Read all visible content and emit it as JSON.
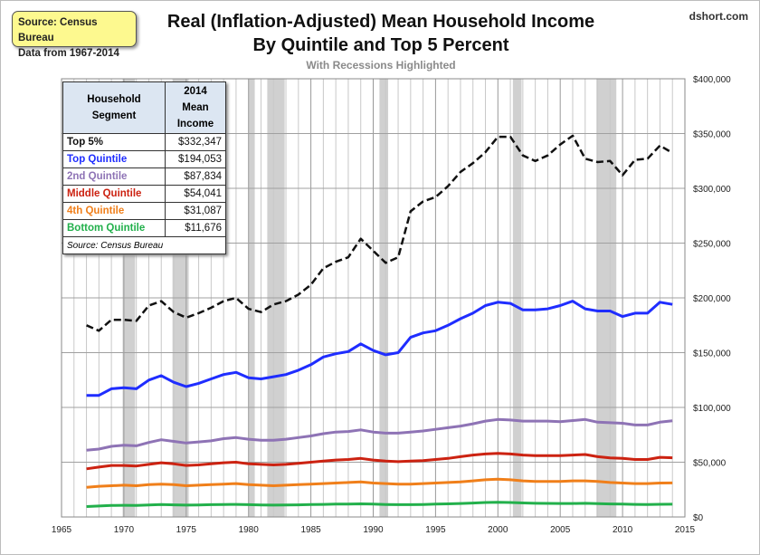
{
  "source_box": {
    "line1": "Source: Census Bureau",
    "line2": "Data from 1967-2014"
  },
  "brand": "dshort.com",
  "chart_data": {
    "type": "line",
    "title_line1": "Real (Inflation-Adjusted) Mean Household Income",
    "title_line2": "By Quintile and Top 5 Percent",
    "subtitle": "With Recessions Highlighted",
    "xlim": [
      1965,
      2015
    ],
    "ylim": [
      0,
      400000
    ],
    "x_ticks": [
      "1965",
      "1970",
      "1975",
      "1980",
      "1985",
      "1990",
      "1995",
      "2000",
      "2005",
      "2010",
      "2015"
    ],
    "y_ticks": [
      "$0",
      "$50,000",
      "$100,000",
      "$150,000",
      "$200,000",
      "$250,000",
      "$300,000",
      "$350,000",
      "$400,000"
    ],
    "y_axis_side": "right",
    "grid": true,
    "recessions": [
      [
        1969.9,
        1970.9
      ],
      [
        1973.9,
        1975.2
      ],
      [
        1980.0,
        1980.5
      ],
      [
        1981.5,
        1982.9
      ],
      [
        1990.5,
        1991.2
      ],
      [
        2001.2,
        2001.9
      ],
      [
        2007.9,
        2009.5
      ]
    ],
    "years_start": 1967,
    "series": [
      {
        "name": "Top 5%",
        "color": "#111111",
        "dashed": true,
        "values": [
          175000,
          170000,
          180000,
          180000,
          179000,
          193000,
          197000,
          187000,
          182000,
          186000,
          191000,
          197000,
          200000,
          190000,
          187000,
          194000,
          197000,
          203000,
          212000,
          227000,
          233000,
          237000,
          254000,
          243000,
          232000,
          237000,
          279000,
          288000,
          292000,
          302000,
          315000,
          323000,
          333000,
          347000,
          347000,
          330000,
          325000,
          330000,
          340000,
          348000,
          327000,
          324000,
          325000,
          312000,
          326000,
          327000,
          339000,
          332347
        ]
      },
      {
        "name": "Top Quintile",
        "color": "#1f2dff",
        "values": [
          111000,
          111000,
          117000,
          118000,
          117000,
          125000,
          129000,
          123000,
          119000,
          122000,
          126000,
          130000,
          132000,
          127000,
          126000,
          128000,
          130000,
          134000,
          139000,
          146000,
          149000,
          151000,
          158000,
          152000,
          148000,
          150000,
          164000,
          168000,
          170000,
          175000,
          181000,
          186000,
          193000,
          196000,
          195000,
          189000,
          189000,
          190000,
          193000,
          197000,
          190000,
          188000,
          188000,
          183000,
          186000,
          186000,
          196000,
          194053
        ]
      },
      {
        "name": "2nd Quintile",
        "color": "#8e73b5",
        "values": [
          61000,
          62000,
          64500,
          65500,
          65000,
          68000,
          70500,
          69000,
          67500,
          68500,
          69500,
          71500,
          72500,
          71000,
          70000,
          70000,
          71000,
          72500,
          74000,
          76000,
          77500,
          78000,
          79500,
          77500,
          76500,
          76500,
          77500,
          78500,
          80000,
          81500,
          83000,
          85000,
          87500,
          89000,
          88500,
          87500,
          87500,
          87500,
          87000,
          88000,
          89000,
          86500,
          86000,
          85500,
          84000,
          84000,
          86500,
          87834
        ]
      },
      {
        "name": "Middle Quintile",
        "color": "#cc2211",
        "values": [
          44000,
          45500,
          47000,
          47000,
          46500,
          48000,
          49500,
          48500,
          47000,
          47500,
          48500,
          49500,
          50000,
          48500,
          48000,
          47500,
          48000,
          49000,
          50000,
          51000,
          52000,
          52500,
          53500,
          52000,
          51000,
          50500,
          51000,
          51500,
          52500,
          53500,
          55000,
          56500,
          57500,
          58000,
          57500,
          56500,
          56000,
          56000,
          56000,
          56500,
          57000,
          55000,
          54000,
          53500,
          52500,
          52500,
          54500,
          54041
        ]
      },
      {
        "name": "4th Quintile",
        "color": "#f07f1a",
        "values": [
          27000,
          28000,
          28500,
          29000,
          28500,
          29500,
          30000,
          29500,
          28500,
          29000,
          29500,
          30000,
          30500,
          29500,
          29000,
          28500,
          29000,
          29500,
          30000,
          30500,
          31000,
          31500,
          32000,
          31000,
          30500,
          30000,
          30000,
          30500,
          31000,
          31500,
          32000,
          33000,
          34000,
          34500,
          34000,
          33000,
          32500,
          32500,
          32500,
          33000,
          33000,
          32500,
          31500,
          31000,
          30500,
          30500,
          31000,
          31087
        ]
      },
      {
        "name": "Bottom Quintile",
        "color": "#22b04b",
        "values": [
          9500,
          10000,
          10500,
          10700,
          10600,
          11000,
          11300,
          11100,
          10800,
          11000,
          11200,
          11400,
          11500,
          11200,
          11000,
          10800,
          10900,
          11100,
          11300,
          11500,
          11700,
          11800,
          12000,
          11700,
          11400,
          11200,
          11200,
          11400,
          11700,
          12000,
          12300,
          12700,
          13200,
          13500,
          13200,
          12800,
          12500,
          12400,
          12300,
          12300,
          12500,
          12200,
          11900,
          11700,
          11500,
          11400,
          11600,
          11676
        ]
      }
    ],
    "table": {
      "header_col1": "Household Segment",
      "header_col2": "2014 Mean Income",
      "rows": [
        {
          "label": "Top 5%",
          "value": "$332,347",
          "color": "#111111"
        },
        {
          "label": "Top Quintile",
          "value": "$194,053",
          "color": "#1f2dff"
        },
        {
          "label": "2nd Quintile",
          "value": "$87,834",
          "color": "#8e73b5"
        },
        {
          "label": "Middle Quintile",
          "value": "$54,041",
          "color": "#cc2211"
        },
        {
          "label": "4th Quintile",
          "value": "$31,087",
          "color": "#f07f1a"
        },
        {
          "label": "Bottom Quintile",
          "value": "$11,676",
          "color": "#22b04b"
        }
      ],
      "source": "Source: Census Bureau"
    }
  }
}
